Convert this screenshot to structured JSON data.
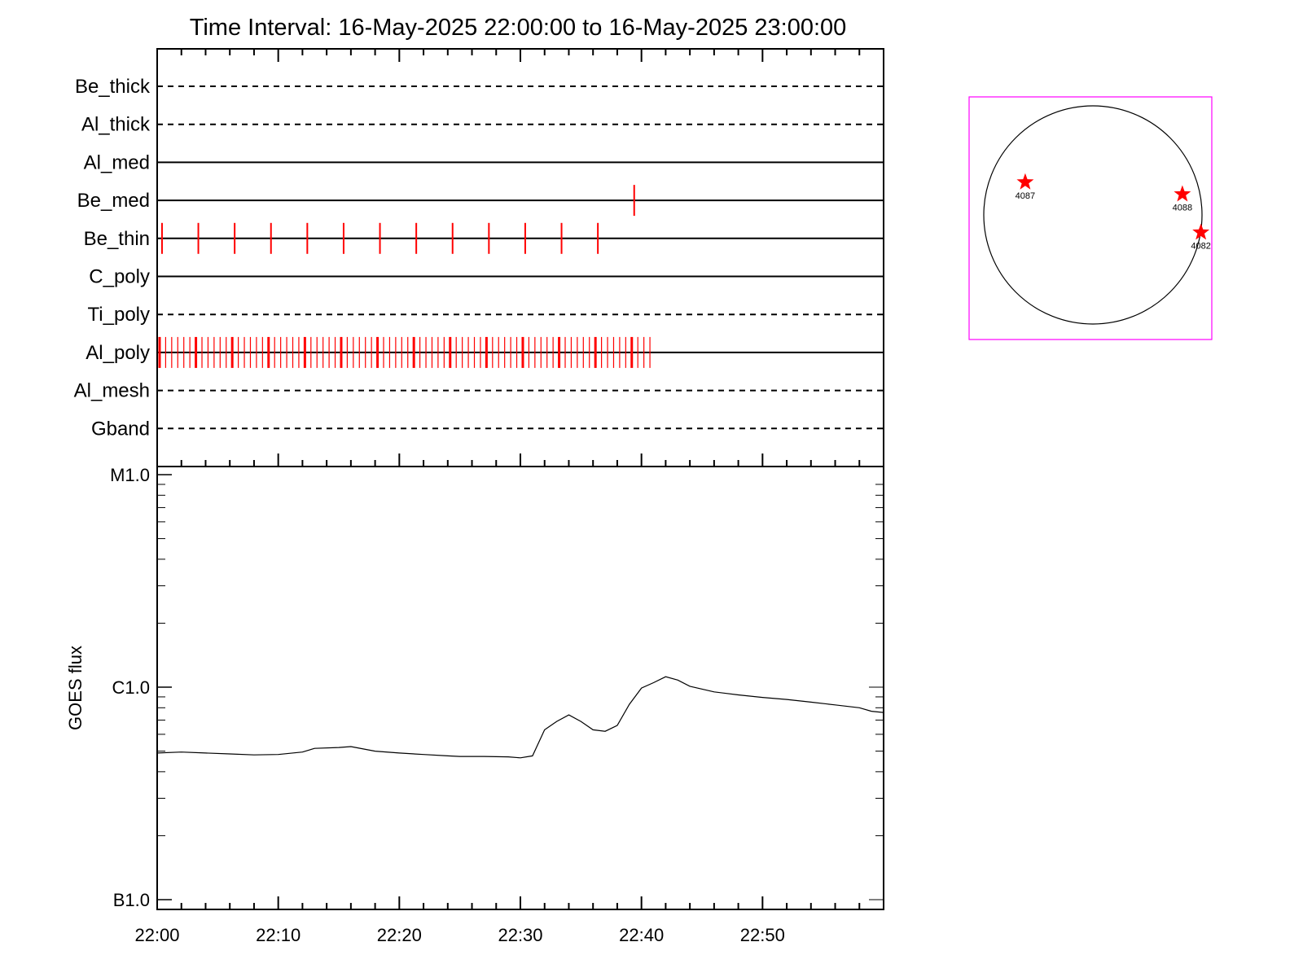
{
  "chart_data": [
    {
      "type": "timeline",
      "title": "Time Interval: 16-May-2025 22:00:00 to 16-May-2025 23:00:00",
      "x_unit": "minutes after 22:00",
      "xlim": [
        0,
        60
      ],
      "rows": [
        {
          "label": "Be_thick",
          "style": "dashed",
          "events": []
        },
        {
          "label": "Al_thick",
          "style": "dashed",
          "events": []
        },
        {
          "label": "Al_med",
          "style": "solid",
          "events": []
        },
        {
          "label": "Be_med",
          "style": "solid",
          "events": [
            39.4
          ]
        },
        {
          "label": "Be_thin",
          "style": "solid",
          "events": [
            0.4,
            3.4,
            6.4,
            9.4,
            12.4,
            15.4,
            18.4,
            21.4,
            24.4,
            27.4,
            30.4,
            33.4,
            36.4
          ]
        },
        {
          "label": "C_poly",
          "style": "solid",
          "events": []
        },
        {
          "label": "Ti_poly",
          "style": "dashed",
          "events": []
        },
        {
          "label": "Al_poly",
          "style": "solid",
          "events_range": {
            "start": 0.2,
            "end": 40.8,
            "step": 0.5
          }
        },
        {
          "label": "Al_mesh",
          "style": "dashed",
          "events": []
        },
        {
          "label": "Gband",
          "style": "dashed",
          "events": []
        }
      ],
      "colors": {
        "events": "#ff0000",
        "axes": "#000000"
      }
    },
    {
      "type": "line",
      "ylabel": "GOES flux",
      "y_scale": "log",
      "ylim": [
        1e-07,
        1e-05
      ],
      "y_ticks": [
        {
          "value": 1e-05,
          "label": "M1.0"
        },
        {
          "value": 1e-06,
          "label": "C1.0"
        },
        {
          "value": 1e-07,
          "label": "B1.0"
        }
      ],
      "x_unit": "minutes after 22:00",
      "xlim": [
        0,
        60
      ],
      "x_ticks": [
        {
          "value": 0,
          "label": "22:00"
        },
        {
          "value": 10,
          "label": "22:10"
        },
        {
          "value": 20,
          "label": "22:20"
        },
        {
          "value": 30,
          "label": "22:30"
        },
        {
          "value": 40,
          "label": "22:40"
        },
        {
          "value": 50,
          "label": "22:50"
        }
      ],
      "series": [
        {
          "x": [
            0,
            2,
            4,
            6,
            8,
            10,
            12,
            13,
            15,
            16,
            18,
            20,
            22,
            24,
            25,
            27,
            29,
            30,
            31,
            32,
            33,
            34,
            35,
            36,
            37,
            38,
            39,
            40,
            41,
            42,
            43,
            44,
            46,
            48,
            50,
            52,
            54,
            56,
            58,
            59,
            60
          ],
          "y": [
            4.9e-07,
            4.95e-07,
            4.9e-07,
            4.85e-07,
            4.8e-07,
            4.82e-07,
            4.95e-07,
            5.15e-07,
            5.2e-07,
            5.25e-07,
            5e-07,
            4.9e-07,
            4.82e-07,
            4.75e-07,
            4.72e-07,
            4.72e-07,
            4.7e-07,
            4.65e-07,
            4.75e-07,
            6.3e-07,
            6.9e-07,
            7.4e-07,
            6.9e-07,
            6.3e-07,
            6.2e-07,
            6.6e-07,
            8.3e-07,
            9.9e-07,
            1.05e-06,
            1.12e-06,
            1.08e-06,
            1.01e-06,
            9.5e-07,
            9.2e-07,
            8.95e-07,
            8.75e-07,
            8.5e-07,
            8.25e-07,
            8e-07,
            7.7e-07,
            7.6e-07
          ],
          "color": "#000000"
        }
      ]
    },
    {
      "type": "diagram",
      "disk": {
        "frame_color": "#ff00ff",
        "circle_color": "#000000"
      },
      "regions": [
        {
          "label": "4087",
          "x": -0.62,
          "y": 0.3
        },
        {
          "label": "4088",
          "x": 0.82,
          "y": 0.19
        },
        {
          "label": "4082",
          "x": 0.99,
          "y": -0.16
        }
      ],
      "marker_color": "#ff0000"
    }
  ]
}
